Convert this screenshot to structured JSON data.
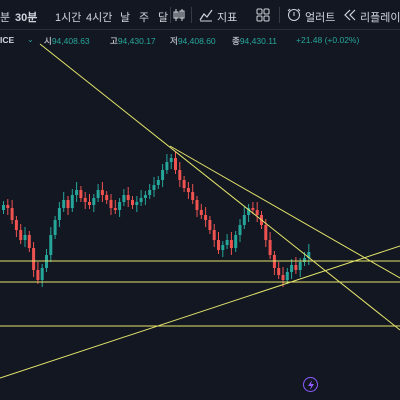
{
  "toolbar": {
    "timeframes": [
      "분",
      "30분",
      "1시간",
      "4시간",
      "날",
      "주",
      "달"
    ],
    "indicators_label": "지표",
    "alerts_label": "얼러트",
    "replay_label": "리플레이"
  },
  "symbol": {
    "partial_name": "ICE"
  },
  "ohlc": {
    "open_label": "시",
    "open": "94,408.63",
    "high_label": "고",
    "high": "94,430.17",
    "low_label": "저",
    "low": "94,408.60",
    "close_label": "종",
    "close": "94,430.11",
    "change": "+21.48 (+0.02%)"
  },
  "colors": {
    "background": "#131722",
    "up": "#26a69a",
    "down": "#ef5350",
    "drawing": "#e4e46a",
    "accent": "#8c5cff"
  },
  "icons": [
    "candle-type-icon",
    "indicators-icon",
    "templates-grid-icon",
    "alert-icon",
    "replay-icon",
    "lightning-icon",
    "chevron-down-icon",
    "eye-icon"
  ]
}
